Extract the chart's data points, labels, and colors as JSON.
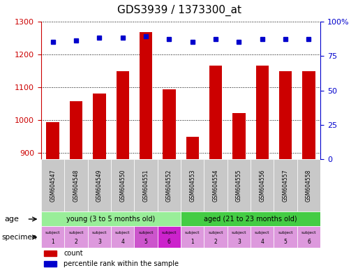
{
  "title": "GDS3939 / 1373300_at",
  "categories": [
    "GSM604547",
    "GSM604548",
    "GSM604549",
    "GSM604550",
    "GSM604551",
    "GSM604552",
    "GSM604553",
    "GSM604554",
    "GSM604555",
    "GSM604556",
    "GSM604557",
    "GSM604558"
  ],
  "counts": [
    993,
    1057,
    1081,
    1148,
    1268,
    1093,
    948,
    1165,
    1021,
    1165,
    1148,
    1148
  ],
  "percentile_ranks": [
    85,
    86,
    88,
    88,
    89,
    87,
    85,
    87,
    85,
    87,
    87,
    87
  ],
  "bar_color": "#cc0000",
  "dot_color": "#0000cc",
  "ylim_left": [
    880,
    1300
  ],
  "ylim_right": [
    0,
    100
  ],
  "yticks_left": [
    900,
    1000,
    1100,
    1200,
    1300
  ],
  "yticks_right": [
    0,
    25,
    50,
    75,
    100
  ],
  "age_groups": [
    {
      "label": "young (3 to 5 months old)",
      "start": 0,
      "end": 6,
      "color": "#99ee99"
    },
    {
      "label": "aged (21 to 23 months old)",
      "start": 6,
      "end": 12,
      "color": "#44cc44"
    }
  ],
  "specimen_colors": [
    "#dd99dd",
    "#dd99dd",
    "#dd99dd",
    "#dd99dd",
    "#cc55cc",
    "#cc22cc",
    "#dd99dd",
    "#dd99dd",
    "#dd99dd",
    "#dd99dd",
    "#dd99dd",
    "#dd99dd"
  ],
  "left_axis_color": "#cc0000",
  "right_axis_color": "#0000cc",
  "background_color": "#ffffff",
  "tick_label_bg": "#c8c8c8",
  "title_fontsize": 11,
  "bar_width": 0.55
}
